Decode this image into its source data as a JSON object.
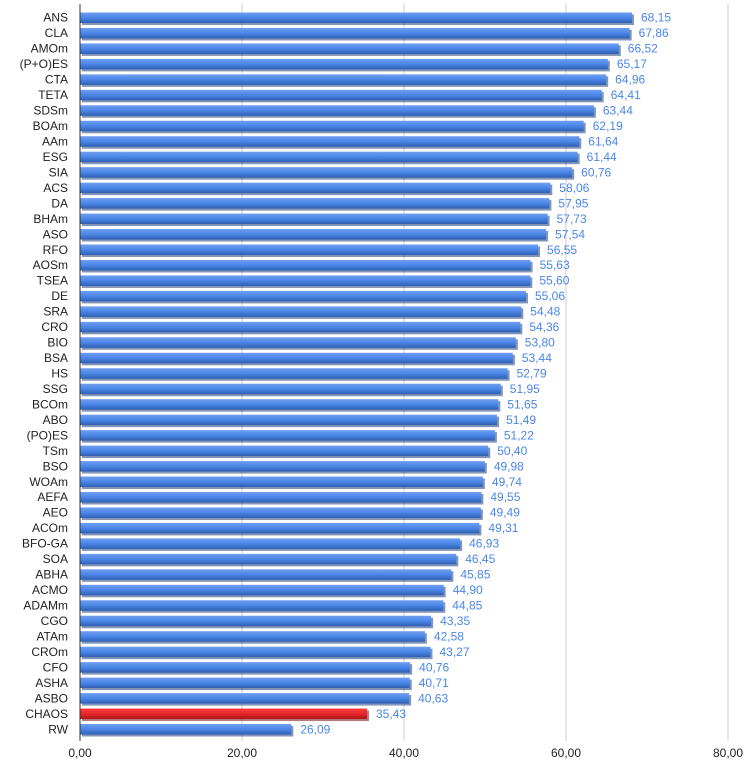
{
  "chart_data": {
    "type": "bar",
    "orientation": "horizontal",
    "title": "",
    "xlabel": "",
    "ylabel": "",
    "xlim": [
      0,
      80
    ],
    "x_ticks": [
      "0,00",
      "20,00",
      "40,00",
      "60,00",
      "80,00"
    ],
    "grid": true,
    "legend": "none",
    "colors": {
      "default": "#4a86e8",
      "highlight": "#e8262a",
      "value_label": "#4a86e8"
    },
    "highlight_category": "CHAOS",
    "categories": [
      "ANS",
      "CLA",
      "AMOm",
      "(P+O)ES",
      "CTA",
      "TETA",
      "SDSm",
      "BOAm",
      "AAm",
      "ESG",
      "SIA",
      "ACS",
      "DA",
      "BHAm",
      "ASO",
      "RFO",
      "AOSm",
      "TSEA",
      "DE",
      "SRA",
      "CRO",
      "BIO",
      "BSA",
      "HS",
      "SSG",
      "BCOm",
      "ABO",
      "(PO)ES",
      "TSm",
      "BSO",
      "WOAm",
      "AEFA",
      "AEO",
      "ACOm",
      "BFO-GA",
      "SOA",
      "ABHA",
      "ACMO",
      "ADAMm",
      "CGO",
      "ATAm",
      "CROm",
      "CFO",
      "ASHA",
      "ASBO",
      "CHAOS",
      "RW"
    ],
    "values": [
      68.15,
      67.86,
      66.52,
      65.17,
      64.96,
      64.41,
      63.44,
      62.19,
      61.64,
      61.44,
      60.76,
      58.06,
      57.95,
      57.73,
      57.54,
      56.55,
      55.63,
      55.6,
      55.06,
      54.48,
      54.36,
      53.8,
      53.44,
      52.79,
      51.95,
      51.65,
      51.49,
      51.22,
      50.4,
      49.98,
      49.74,
      49.55,
      49.49,
      49.31,
      46.93,
      46.45,
      45.85,
      44.9,
      44.85,
      43.35,
      42.58,
      43.27,
      40.76,
      40.71,
      40.63,
      35.43,
      26.09
    ],
    "value_labels": [
      "68,15",
      "67,86",
      "66,52",
      "65,17",
      "64,96",
      "64,41",
      "63,44",
      "62,19",
      "61,64",
      "61,44",
      "60,76",
      "58,06",
      "57,95",
      "57,73",
      "57,54",
      "56,55",
      "55,63",
      "55,60",
      "55,06",
      "54,48",
      "54,36",
      "53,80",
      "53,44",
      "52,79",
      "51,95",
      "51,65",
      "51,49",
      "51,22",
      "50,40",
      "49,98",
      "49,74",
      "49,55",
      "49,49",
      "49,31",
      "46,93",
      "46,45",
      "45,85",
      "44,90",
      "44,85",
      "43,35",
      "42,58",
      "43,27",
      "40,76",
      "40,71",
      "40,63",
      "35,43",
      "26,09"
    ]
  }
}
